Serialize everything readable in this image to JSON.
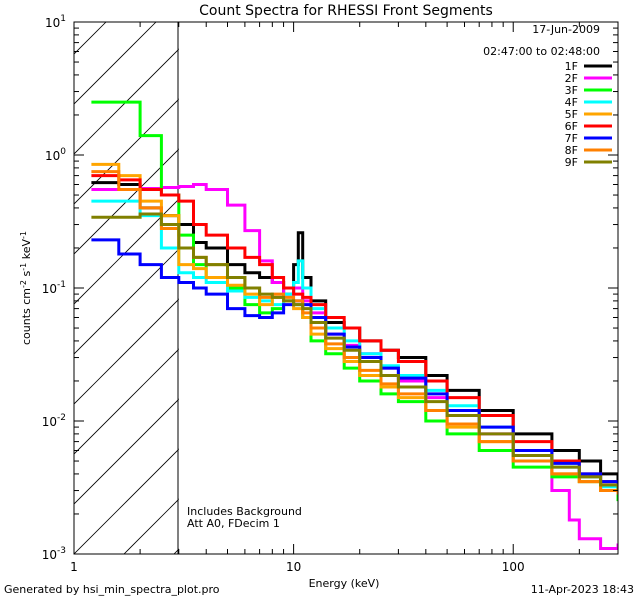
{
  "chart_data": {
    "type": "line",
    "title": "Count Spectra for RHESSI Front Segments",
    "xlabel": "Energy (keV)",
    "ylabel": "counts cm-2 s-1 keV-1",
    "xscale": "log",
    "yscale": "log",
    "xlim": [
      1,
      300
    ],
    "ylim": [
      0.001,
      10
    ],
    "x_ticks": [
      {
        "value": 1,
        "label": "1"
      },
      {
        "value": 10,
        "label": "10"
      },
      {
        "value": 100,
        "label": "100"
      }
    ],
    "y_ticks": [
      {
        "value": 10,
        "mant": "10",
        "exp": "1"
      },
      {
        "value": 1,
        "mant": "10",
        "exp": "0"
      },
      {
        "value": 0.1,
        "mant": "10",
        "exp": "-1"
      },
      {
        "value": 0.01,
        "mant": "10",
        "exp": "-2"
      },
      {
        "value": 0.001,
        "mant": "10",
        "exp": "-3"
      }
    ],
    "date": "17-Jun-2009",
    "time_range": "02:47:00 to 02:48:00",
    "hatched_region": {
      "x_from": 1,
      "x_to": 3
    },
    "annotation": [
      "Includes Background",
      "Att A0, FDecim 1"
    ],
    "series": [
      {
        "name": "1F",
        "color": "#000000",
        "points": [
          [
            1.2,
            0.62
          ],
          [
            1.6,
            0.6
          ],
          [
            2.0,
            0.4
          ],
          [
            2.5,
            0.35
          ],
          [
            3.0,
            0.3
          ],
          [
            3.5,
            0.22
          ],
          [
            4.0,
            0.2
          ],
          [
            5.0,
            0.15
          ],
          [
            6.0,
            0.13
          ],
          [
            7.0,
            0.12
          ],
          [
            8.0,
            0.11
          ],
          [
            9.0,
            0.09
          ],
          [
            10.0,
            0.15
          ],
          [
            10.5,
            0.26
          ],
          [
            11.0,
            0.12
          ],
          [
            12.0,
            0.08
          ],
          [
            14.0,
            0.055
          ],
          [
            17.0,
            0.05
          ],
          [
            20.0,
            0.04
          ],
          [
            25.0,
            0.034
          ],
          [
            30.0,
            0.03
          ],
          [
            40.0,
            0.022
          ],
          [
            50.0,
            0.017
          ],
          [
            70.0,
            0.012
          ],
          [
            100.0,
            0.008
          ],
          [
            150.0,
            0.006
          ],
          [
            200.0,
            0.005
          ],
          [
            250.0,
            0.004
          ],
          [
            300.0,
            0.0035
          ]
        ]
      },
      {
        "name": "2F",
        "color": "#ff00ff",
        "points": [
          [
            1.2,
            0.55
          ],
          [
            1.6,
            0.55
          ],
          [
            2.0,
            0.56
          ],
          [
            2.5,
            0.57
          ],
          [
            3.0,
            0.58
          ],
          [
            3.5,
            0.6
          ],
          [
            4.0,
            0.55
          ],
          [
            5.0,
            0.42
          ],
          [
            6.0,
            0.27
          ],
          [
            7.0,
            0.16
          ],
          [
            8.0,
            0.11
          ],
          [
            9.0,
            0.09
          ],
          [
            10.0,
            0.1
          ],
          [
            11.0,
            0.08
          ],
          [
            12.0,
            0.065
          ],
          [
            14.0,
            0.045
          ],
          [
            17.0,
            0.037
          ],
          [
            20.0,
            0.032
          ],
          [
            25.0,
            0.025
          ],
          [
            30.0,
            0.02
          ],
          [
            40.0,
            0.015
          ],
          [
            50.0,
            0.012
          ],
          [
            70.0,
            0.008
          ],
          [
            100.0,
            0.0055
          ],
          [
            150.0,
            0.003
          ],
          [
            180.0,
            0.0018
          ],
          [
            200.0,
            0.0013
          ],
          [
            250.0,
            0.0011
          ],
          [
            300.0,
            0.0012
          ]
        ]
      },
      {
        "name": "3F",
        "color": "#00ff00",
        "points": [
          [
            1.2,
            2.5
          ],
          [
            1.6,
            2.5
          ],
          [
            2.0,
            1.4
          ],
          [
            2.5,
            0.5
          ],
          [
            3.0,
            0.25
          ],
          [
            3.5,
            0.15
          ],
          [
            4.0,
            0.12
          ],
          [
            5.0,
            0.1
          ],
          [
            6.0,
            0.075
          ],
          [
            7.0,
            0.065
          ],
          [
            8.0,
            0.07
          ],
          [
            9.0,
            0.08
          ],
          [
            10.0,
            0.075
          ],
          [
            11.0,
            0.06
          ],
          [
            12.0,
            0.04
          ],
          [
            14.0,
            0.032
          ],
          [
            17.0,
            0.025
          ],
          [
            20.0,
            0.02
          ],
          [
            25.0,
            0.016
          ],
          [
            30.0,
            0.014
          ],
          [
            40.0,
            0.01
          ],
          [
            50.0,
            0.008
          ],
          [
            70.0,
            0.006
          ],
          [
            100.0,
            0.0045
          ],
          [
            150.0,
            0.0038
          ],
          [
            200.0,
            0.0035
          ],
          [
            250.0,
            0.003
          ],
          [
            300.0,
            0.0025
          ]
        ]
      },
      {
        "name": "4F",
        "color": "#00ffff",
        "points": [
          [
            1.2,
            0.45
          ],
          [
            1.6,
            0.45
          ],
          [
            2.0,
            0.35
          ],
          [
            2.5,
            0.2
          ],
          [
            3.0,
            0.13
          ],
          [
            3.5,
            0.12
          ],
          [
            4.0,
            0.11
          ],
          [
            5.0,
            0.095
          ],
          [
            6.0,
            0.085
          ],
          [
            7.0,
            0.08
          ],
          [
            8.0,
            0.075
          ],
          [
            9.0,
            0.09
          ],
          [
            10.0,
            0.11
          ],
          [
            10.5,
            0.16
          ],
          [
            11.0,
            0.1
          ],
          [
            12.0,
            0.07
          ],
          [
            14.0,
            0.05
          ],
          [
            17.0,
            0.04
          ],
          [
            20.0,
            0.032
          ],
          [
            25.0,
            0.026
          ],
          [
            30.0,
            0.022
          ],
          [
            40.0,
            0.017
          ],
          [
            50.0,
            0.013
          ],
          [
            70.0,
            0.009
          ],
          [
            100.0,
            0.006
          ],
          [
            150.0,
            0.0045
          ],
          [
            200.0,
            0.0038
          ],
          [
            250.0,
            0.0032
          ],
          [
            300.0,
            0.003
          ]
        ]
      },
      {
        "name": "5F",
        "color": "#ffa500",
        "points": [
          [
            1.2,
            0.85
          ],
          [
            1.6,
            0.7
          ],
          [
            2.0,
            0.45
          ],
          [
            2.5,
            0.35
          ],
          [
            3.0,
            0.15
          ],
          [
            3.5,
            0.14
          ],
          [
            4.0,
            0.12
          ],
          [
            5.0,
            0.105
          ],
          [
            6.0,
            0.09
          ],
          [
            7.0,
            0.075
          ],
          [
            8.0,
            0.085
          ],
          [
            9.0,
            0.08
          ],
          [
            10.0,
            0.07
          ],
          [
            11.0,
            0.06
          ],
          [
            12.0,
            0.045
          ],
          [
            14.0,
            0.035
          ],
          [
            17.0,
            0.028
          ],
          [
            20.0,
            0.022
          ],
          [
            25.0,
            0.018
          ],
          [
            30.0,
            0.015
          ],
          [
            40.0,
            0.012
          ],
          [
            50.0,
            0.009
          ],
          [
            70.0,
            0.007
          ],
          [
            100.0,
            0.005
          ],
          [
            150.0,
            0.004
          ],
          [
            200.0,
            0.0035
          ],
          [
            250.0,
            0.003
          ],
          [
            300.0,
            0.0028
          ]
        ]
      },
      {
        "name": "6F",
        "color": "#ff0000",
        "points": [
          [
            1.2,
            0.7
          ],
          [
            1.6,
            0.65
          ],
          [
            2.0,
            0.55
          ],
          [
            2.5,
            0.5
          ],
          [
            3.0,
            0.45
          ],
          [
            3.5,
            0.3
          ],
          [
            4.0,
            0.25
          ],
          [
            5.0,
            0.2
          ],
          [
            6.0,
            0.17
          ],
          [
            7.0,
            0.15
          ],
          [
            8.0,
            0.12
          ],
          [
            9.0,
            0.1
          ],
          [
            10.0,
            0.09
          ],
          [
            11.0,
            0.085
          ],
          [
            12.0,
            0.075
          ],
          [
            14.0,
            0.06
          ],
          [
            17.0,
            0.05
          ],
          [
            20.0,
            0.04
          ],
          [
            25.0,
            0.034
          ],
          [
            30.0,
            0.028
          ],
          [
            40.0,
            0.02
          ],
          [
            50.0,
            0.015
          ],
          [
            70.0,
            0.011
          ],
          [
            100.0,
            0.007
          ],
          [
            150.0,
            0.005
          ],
          [
            200.0,
            0.004
          ],
          [
            250.0,
            0.0035
          ],
          [
            300.0,
            0.003
          ]
        ]
      },
      {
        "name": "7F",
        "color": "#0000ff",
        "points": [
          [
            1.2,
            0.23
          ],
          [
            1.6,
            0.18
          ],
          [
            2.0,
            0.15
          ],
          [
            2.5,
            0.12
          ],
          [
            3.0,
            0.11
          ],
          [
            3.5,
            0.1
          ],
          [
            4.0,
            0.09
          ],
          [
            5.0,
            0.07
          ],
          [
            6.0,
            0.062
          ],
          [
            7.0,
            0.06
          ],
          [
            8.0,
            0.065
          ],
          [
            9.0,
            0.075
          ],
          [
            10.0,
            0.08
          ],
          [
            11.0,
            0.075
          ],
          [
            12.0,
            0.06
          ],
          [
            14.0,
            0.045
          ],
          [
            17.0,
            0.036
          ],
          [
            20.0,
            0.03
          ],
          [
            25.0,
            0.025
          ],
          [
            30.0,
            0.021
          ],
          [
            40.0,
            0.016
          ],
          [
            50.0,
            0.012
          ],
          [
            70.0,
            0.009
          ],
          [
            100.0,
            0.006
          ],
          [
            150.0,
            0.0048
          ],
          [
            200.0,
            0.004
          ],
          [
            250.0,
            0.0035
          ],
          [
            300.0,
            0.003
          ]
        ]
      },
      {
        "name": "8F",
        "color": "#ff8000",
        "points": [
          [
            1.2,
            0.75
          ],
          [
            1.6,
            0.55
          ],
          [
            2.0,
            0.4
          ],
          [
            2.5,
            0.28
          ],
          [
            3.0,
            0.2
          ],
          [
            3.5,
            0.17
          ],
          [
            4.0,
            0.15
          ],
          [
            5.0,
            0.12
          ],
          [
            6.0,
            0.1
          ],
          [
            7.0,
            0.085
          ],
          [
            8.0,
            0.09
          ],
          [
            9.0,
            0.085
          ],
          [
            10.0,
            0.08
          ],
          [
            11.0,
            0.065
          ],
          [
            12.0,
            0.05
          ],
          [
            14.0,
            0.038
          ],
          [
            17.0,
            0.03
          ],
          [
            20.0,
            0.024
          ],
          [
            25.0,
            0.019
          ],
          [
            30.0,
            0.016
          ],
          [
            40.0,
            0.012
          ],
          [
            50.0,
            0.0095
          ],
          [
            70.0,
            0.007
          ],
          [
            100.0,
            0.005
          ],
          [
            150.0,
            0.004
          ],
          [
            200.0,
            0.0035
          ],
          [
            250.0,
            0.003
          ],
          [
            300.0,
            0.0028
          ]
        ]
      },
      {
        "name": "9F",
        "color": "#808000",
        "points": [
          [
            1.2,
            0.34
          ],
          [
            1.6,
            0.34
          ],
          [
            2.0,
            0.36
          ],
          [
            2.5,
            0.3
          ],
          [
            3.0,
            0.2
          ],
          [
            3.5,
            0.17
          ],
          [
            4.0,
            0.15
          ],
          [
            5.0,
            0.12
          ],
          [
            6.0,
            0.1
          ],
          [
            7.0,
            0.09
          ],
          [
            8.0,
            0.085
          ],
          [
            9.0,
            0.08
          ],
          [
            10.0,
            0.075
          ],
          [
            11.0,
            0.07
          ],
          [
            12.0,
            0.055
          ],
          [
            14.0,
            0.042
          ],
          [
            17.0,
            0.034
          ],
          [
            20.0,
            0.028
          ],
          [
            25.0,
            0.022
          ],
          [
            30.0,
            0.018
          ],
          [
            40.0,
            0.014
          ],
          [
            50.0,
            0.011
          ],
          [
            70.0,
            0.008
          ],
          [
            100.0,
            0.0055
          ],
          [
            150.0,
            0.0045
          ],
          [
            200.0,
            0.0038
          ],
          [
            250.0,
            0.0033
          ],
          [
            300.0,
            0.003
          ]
        ]
      }
    ]
  },
  "footer": {
    "generated_by": "Generated by hsi_min_spectra_plot.pro",
    "timestamp": "11-Apr-2023 18:43"
  }
}
